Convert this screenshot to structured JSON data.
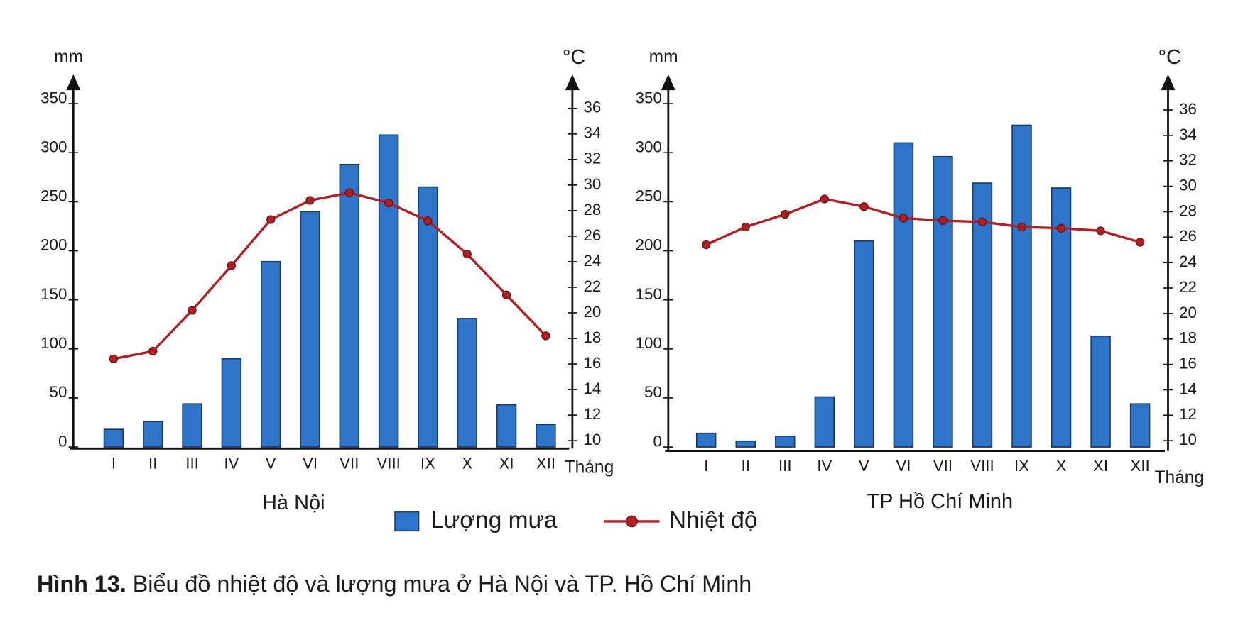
{
  "chart_data": [
    {
      "type": "bar-line",
      "subtitle": "Hà Nội",
      "y_label": "mm",
      "y2_label": "°C",
      "x_label": "Tháng",
      "categories": [
        "I",
        "II",
        "III",
        "IV",
        "V",
        "VI",
        "VII",
        "VIII",
        "IX",
        "X",
        "XI",
        "XII"
      ],
      "series": [
        {
          "name": "Lượng mưa",
          "type": "bar",
          "color": "#2e74c9",
          "values": [
            18,
            26,
            44,
            90,
            189,
            240,
            288,
            318,
            265,
            131,
            43,
            23
          ]
        },
        {
          "name": "Nhiệt độ",
          "type": "line",
          "axis": "y2",
          "color": "#b11f23",
          "values": [
            16.4,
            17.0,
            20.2,
            23.7,
            27.3,
            28.8,
            29.4,
            28.6,
            27.2,
            24.6,
            21.4,
            18.2
          ]
        }
      ],
      "ylim": [
        0,
        350
      ],
      "yticks": [
        0,
        50,
        100,
        150,
        200,
        250,
        300,
        350
      ],
      "y2lim": [
        10,
        36
      ],
      "y2ticks": [
        10,
        12,
        14,
        16,
        18,
        20,
        22,
        24,
        26,
        28,
        30,
        32,
        34,
        36
      ]
    },
    {
      "type": "bar-line",
      "subtitle": "TP Hồ Chí Minh",
      "y_label": "mm",
      "y2_label": "°C",
      "x_label": "Tháng",
      "categories": [
        "I",
        "II",
        "III",
        "IV",
        "V",
        "VI",
        "VII",
        "VIII",
        "IX",
        "X",
        "XI",
        "XII"
      ],
      "series": [
        {
          "type": "bar",
          "color": "#2e74c9",
          "values": [
            14,
            6,
            11,
            51,
            210,
            310,
            296,
            269,
            328,
            264,
            113,
            44
          ]
        },
        {
          "type": "line",
          "axis": "y2",
          "color": "#b11f23",
          "values": [
            25.4,
            26.8,
            27.8,
            29.0,
            28.4,
            27.5,
            27.3,
            27.2,
            26.8,
            26.7,
            26.5,
            25.6
          ]
        }
      ],
      "ylim": [
        0,
        350
      ],
      "yticks": [
        0,
        50,
        100,
        150,
        200,
        250,
        300,
        350
      ],
      "y2lim": [
        10,
        36
      ],
      "y2ticks": [
        10,
        12,
        14,
        16,
        18,
        20,
        22,
        24,
        26,
        28,
        30,
        32,
        34,
        36
      ]
    }
  ],
  "caption": {
    "label": "Hình 13.",
    "text": "Biểu đồ nhiệt độ và lượng mưa ở Hà Nội và TP. Hồ Chí Minh"
  }
}
